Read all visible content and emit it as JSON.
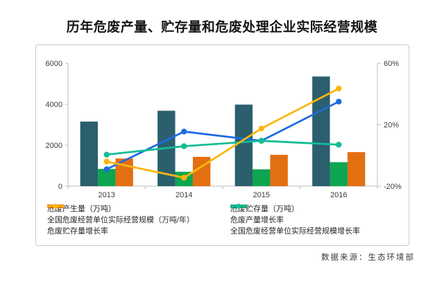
{
  "title": "历年危废产量、贮存量和危废处理企业实际经营规模",
  "source": "数据来源：生态环境部",
  "colors": {
    "production": "#2b5f6e",
    "storage": "#0da54f",
    "scale": "#e36f13",
    "production_growth": "#1e6ae1",
    "storage_growth": "#fdb60d",
    "scale_growth": "#12bd95",
    "axis": "#bdbdbd",
    "tick_text": "#3d3d3d",
    "border": "#c9c9c9"
  },
  "chart_data": {
    "type": "bar",
    "subtype": "combo-bar-line-dual-axis",
    "title": "历年危废产量、贮存量和危废处理企业实际经营规模",
    "categories": [
      "2013",
      "2014",
      "2015",
      "2016"
    ],
    "bar_series": [
      {
        "name": "危废产生量（万吨）",
        "axis": "left",
        "color_key": "production",
        "values": [
          3150,
          3680,
          3980,
          5350
        ]
      },
      {
        "name": "危废贮存量（万吨）",
        "axis": "left",
        "color_key": "storage",
        "values": [
          840,
          700,
          820,
          1170
        ]
      },
      {
        "name": "全国危废经营单位实际经营规模（万吨/年）",
        "axis": "left",
        "color_key": "scale",
        "values": [
          1350,
          1430,
          1530,
          1660
        ]
      }
    ],
    "line_series": [
      {
        "name": "危废产量增长率",
        "axis": "right",
        "color_key": "production_growth",
        "values": [
          -9,
          15.5,
          9.5,
          35
        ],
        "unit": "%"
      },
      {
        "name": "全国危废经营单位实际经营规模增长率",
        "axis": "right",
        "color_key": "scale_growth",
        "values": [
          0.5,
          6,
          9.5,
          7
        ],
        "unit": "%"
      },
      {
        "name": "危废贮存量增长率",
        "axis": "right",
        "color_key": "storage_growth",
        "values": [
          -4,
          -14.5,
          17.5,
          43.5
        ],
        "unit": "%"
      }
    ],
    "left_axis": {
      "range": [
        0,
        6000
      ],
      "tick_values": [
        0,
        2000,
        4000,
        6000
      ],
      "tick_labels": [
        "0",
        "2000",
        "4000",
        "6000"
      ]
    },
    "right_axis": {
      "range": [
        -20,
        60
      ],
      "tick_values": [
        -20,
        20,
        60
      ],
      "tick_labels": [
        "-20%",
        "20%",
        "60%"
      ]
    },
    "grid": false,
    "legend_position": "bottom"
  },
  "legend": {
    "columns": [
      {
        "items": [
          {
            "label": "危废产生量（万吨）",
            "type": "bar",
            "color_key": "production"
          },
          {
            "label": "全国危废经营单位实际经营规模（万吨/年）",
            "type": "bar",
            "color_key": "scale"
          },
          {
            "label": "危废贮存量增长率",
            "type": "line",
            "color_key": "storage_growth"
          }
        ]
      },
      {
        "items": [
          {
            "label": "危废贮存量（万吨）",
            "type": "bar",
            "color_key": "storage"
          },
          {
            "label": "危废产量增长率",
            "type": "line",
            "color_key": "production_growth"
          },
          {
            "label": "全国危废经营单位实际经营规模增长率",
            "type": "line",
            "color_key": "scale_growth"
          }
        ]
      }
    ]
  }
}
